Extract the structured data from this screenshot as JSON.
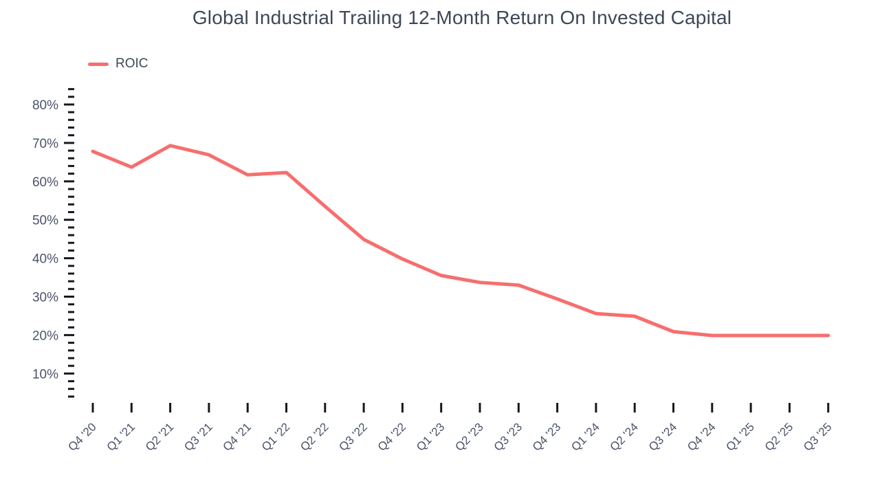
{
  "chart_data": {
    "type": "line",
    "title": "Global Industrial Trailing 12-Month Return On Invested Capital",
    "legend": [
      {
        "label": "ROIC",
        "color": "#F76E6E"
      }
    ],
    "categories": [
      "Q4 '20",
      "Q1 '21",
      "Q2 '21",
      "Q3 '21",
      "Q4 '21",
      "Q1 '22",
      "Q2 '22",
      "Q3 '22",
      "Q4 '22",
      "Q1 '23",
      "Q2 '23",
      "Q3 '23",
      "Q4 '23",
      "Q1 '24",
      "Q2 '24",
      "Q3 '24",
      "Q4 '24",
      "Q1 '25",
      "Q2 '25",
      "Q3 '25"
    ],
    "series": [
      {
        "name": "ROIC",
        "values": [
          67.8,
          63.7,
          69.3,
          66.9,
          61.7,
          62.3,
          53.5,
          44.9,
          39.8,
          35.5,
          33.7,
          33.0,
          29.4,
          25.6,
          24.9,
          20.9,
          19.9,
          19.9,
          19.9,
          19.9
        ]
      }
    ],
    "unit": "%",
    "xlabel": "",
    "ylabel": "",
    "y_axis": {
      "tick_min": 4,
      "tick_max": 84,
      "minor_step": 2,
      "label_step": 10,
      "labels": [
        "10%",
        "20%",
        "30%",
        "40%",
        "50%",
        "60%",
        "70%",
        "80%"
      ]
    },
    "grid": false,
    "legend_position": "top-left",
    "colors": {
      "line": "#F76E6E",
      "title_text": "#3d4756",
      "axis_label_text": "#4a5368",
      "tick_mark": "#15181d",
      "background": "#ffffff"
    }
  }
}
